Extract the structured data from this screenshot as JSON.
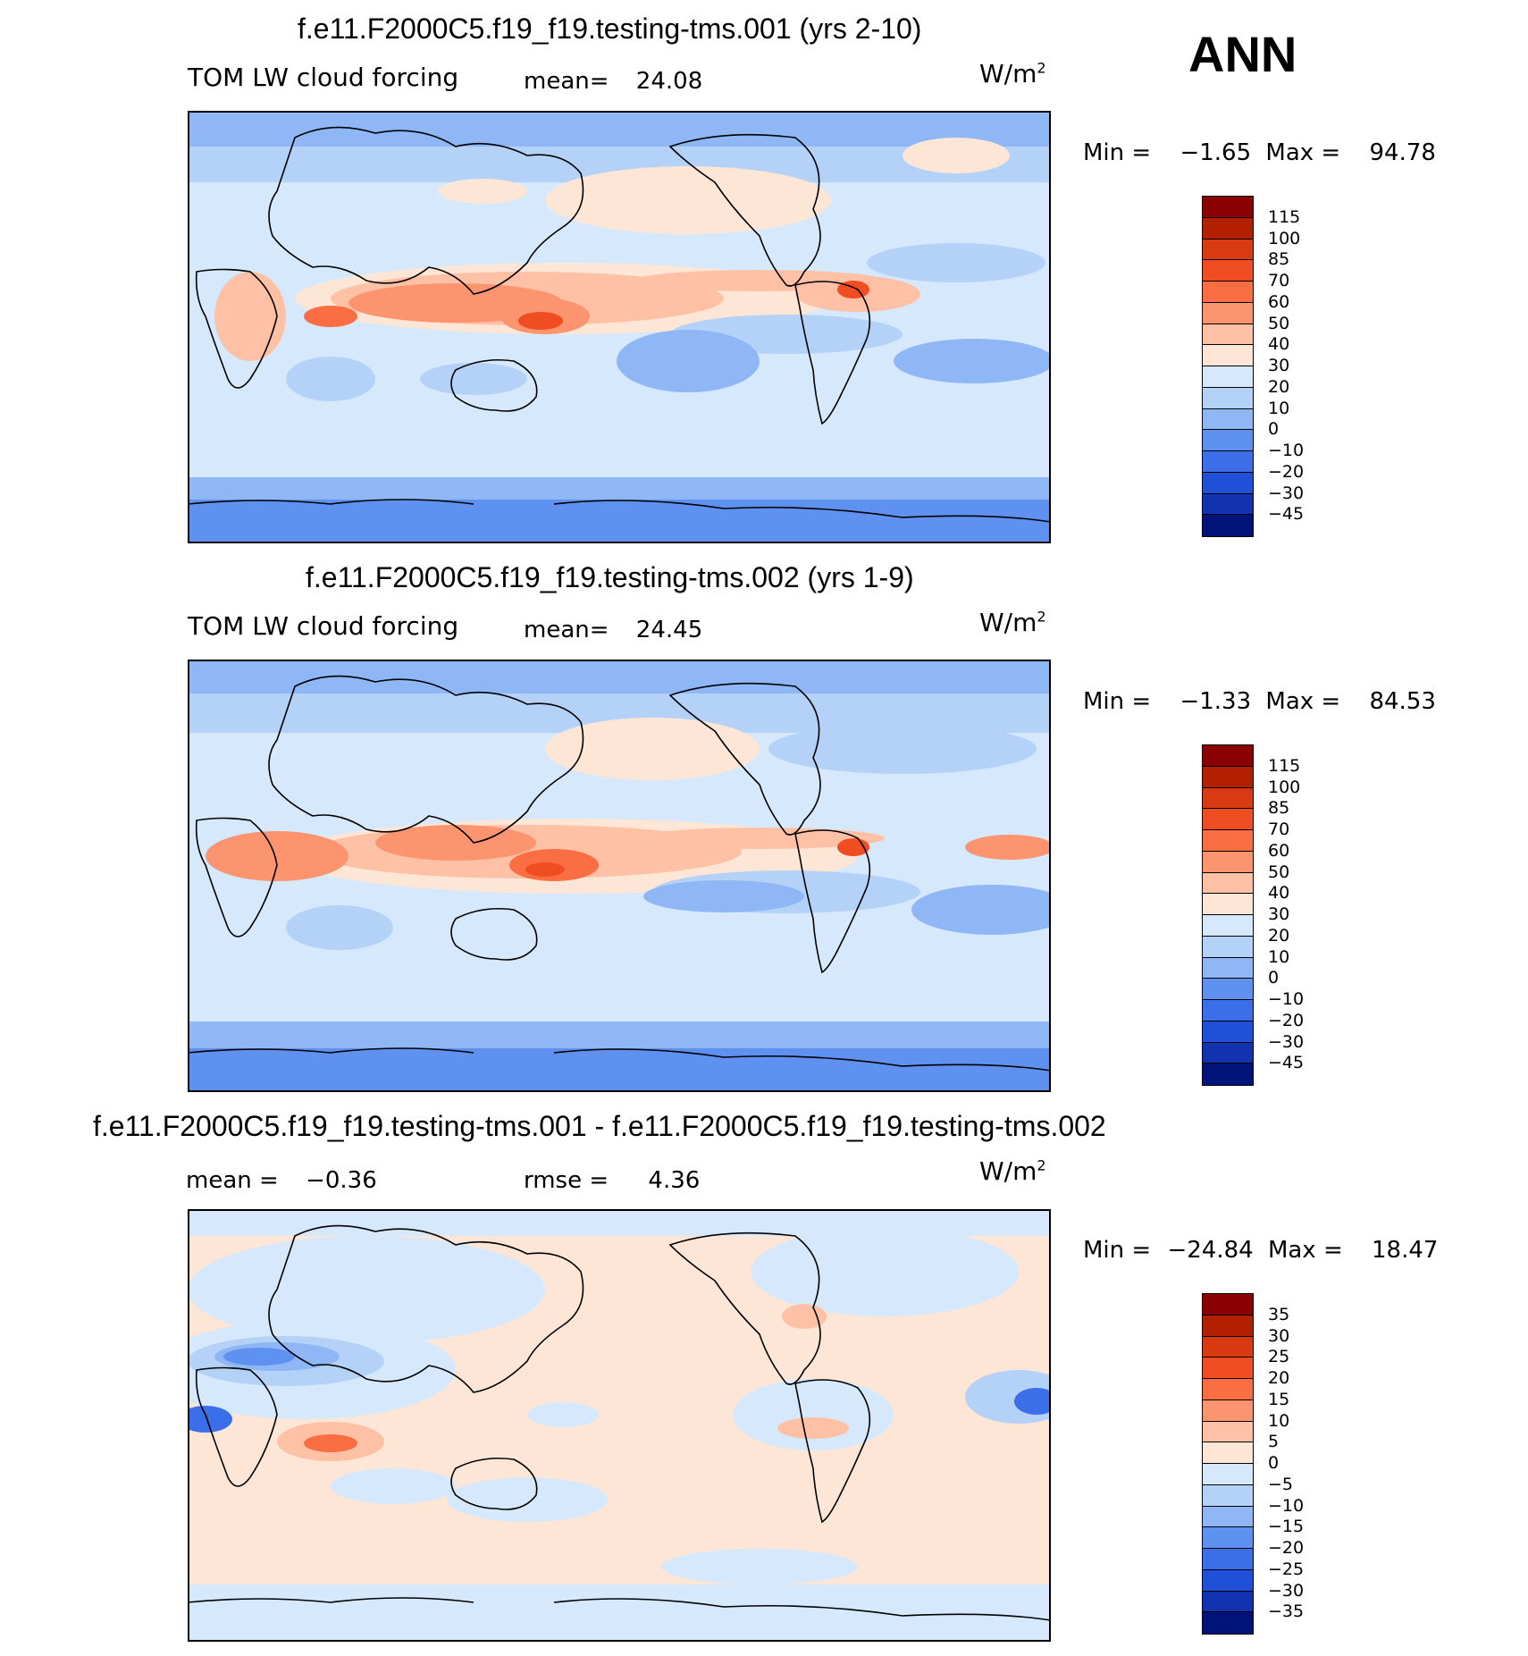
{
  "season": "ANN",
  "colors": {
    "coast": "#000000",
    "cbar_main": [
      "#8b0000",
      "#b22000",
      "#d83a12",
      "#f04e22",
      "#fb6e44",
      "#fd9470",
      "#fec1a6",
      "#fde6d6",
      "#d6e8fb",
      "#b4d2f8",
      "#8fb6f5",
      "#5f92f0",
      "#3b6ee8",
      "#2150d8",
      "#1232b0",
      "#00137a"
    ],
    "cbar_diff": [
      "#8b0000",
      "#b22000",
      "#d83a12",
      "#f04e22",
      "#fb6e44",
      "#fd9470",
      "#fec1a6",
      "#fde6d6",
      "#d6e8fb",
      "#b4d2f8",
      "#8fb6f5",
      "#5f92f0",
      "#3b6ee8",
      "#2150d8",
      "#1232b0",
      "#00137a"
    ]
  },
  "panels": [
    {
      "title": "f.e11.F2000C5.f19_f19.testing-tms.001 (yrs 2-10)",
      "variable": "TOM LW cloud forcing",
      "mean_label": "mean=",
      "mean_value": "24.08",
      "units": "W/m",
      "units_exp": "2",
      "min_label": "Min =",
      "min_value": "-1.65",
      "max_label": "Max =",
      "max_value": "94.78",
      "levels": [
        "115",
        "100",
        "85",
        "70",
        "60",
        "50",
        "40",
        "30",
        "20",
        "10",
        "0",
        "-10",
        "-20",
        "-30",
        "-45"
      ]
    },
    {
      "title": "f.e11.F2000C5.f19_f19.testing-tms.002 (yrs 1-9)",
      "variable": "TOM LW cloud forcing",
      "mean_label": "mean=",
      "mean_value": "24.45",
      "units": "W/m",
      "units_exp": "2",
      "min_label": "Min =",
      "min_value": "-1.33",
      "max_label": "Max =",
      "max_value": "84.53",
      "levels": [
        "115",
        "100",
        "85",
        "70",
        "60",
        "50",
        "40",
        "30",
        "20",
        "10",
        "0",
        "-10",
        "-20",
        "-30",
        "-45"
      ]
    },
    {
      "title": "f.e11.F2000C5.f19_f19.testing-tms.001 - f.e11.F2000C5.f19_f19.testing-tms.002",
      "mean_label": "mean =",
      "mean_value": "-0.36",
      "rmse_label": "rmse =",
      "rmse_value": "4.36",
      "units": "W/m",
      "units_exp": "2",
      "min_label": "Min =",
      "min_value": "-24.84",
      "max_label": "Max =",
      "max_value": "18.47",
      "levels": [
        "35",
        "30",
        "25",
        "20",
        "15",
        "10",
        "5",
        "0",
        "-5",
        "-10",
        "-15",
        "-20",
        "-25",
        "-30",
        "-35"
      ]
    }
  ]
}
